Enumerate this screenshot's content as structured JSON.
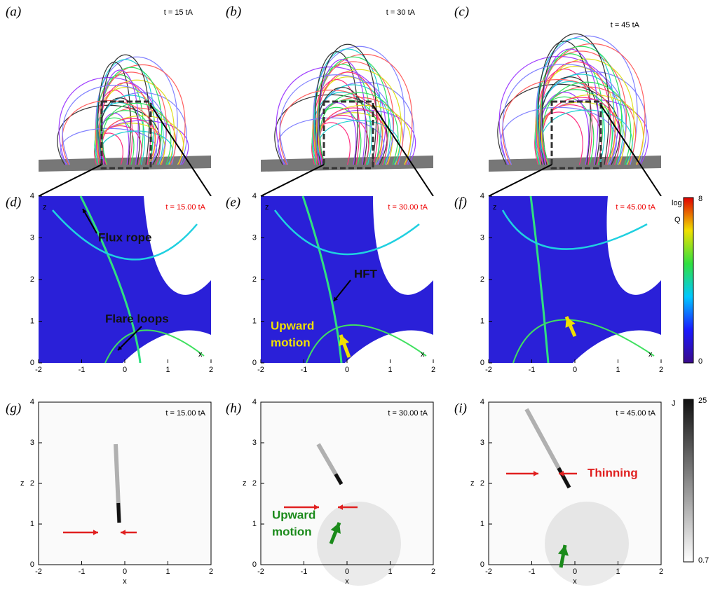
{
  "panels": [
    {
      "label": "(a)",
      "time": "t = 15 tA"
    },
    {
      "label": "(b)",
      "time": "t = 30 tA"
    },
    {
      "label": "(c)",
      "time": "t = 45 tA"
    },
    {
      "label": "(d)",
      "time": "t = 15.00 tA",
      "annotations": [
        "Flux rope",
        "Flare loops"
      ]
    },
    {
      "label": "(e)",
      "time": "t = 30.00 tA",
      "annotations": [
        "HFT",
        "Upward",
        "motion"
      ]
    },
    {
      "label": "(f)",
      "time": "t = 45.00 tA"
    },
    {
      "label": "(g)",
      "time": "t = 15.00 tA"
    },
    {
      "label": "(h)",
      "time": "t = 30.00 tA",
      "annotations": [
        "Upward",
        "motion"
      ]
    },
    {
      "label": "(i)",
      "time": "t = 45.00 tA",
      "annotations": [
        "Thinning"
      ]
    }
  ],
  "axes": {
    "x_label": "x",
    "z_label": "z",
    "x_ticks": [
      "-2",
      "-1",
      "0",
      "1",
      "2"
    ],
    "z_ticks": [
      "0",
      "1",
      "2",
      "3",
      "4"
    ]
  },
  "colorbars": [
    {
      "title": [
        "log",
        "Q"
      ],
      "max": "8",
      "min": "0"
    },
    {
      "title": [
        "J"
      ],
      "max": "25",
      "min": "0.7"
    }
  ]
}
